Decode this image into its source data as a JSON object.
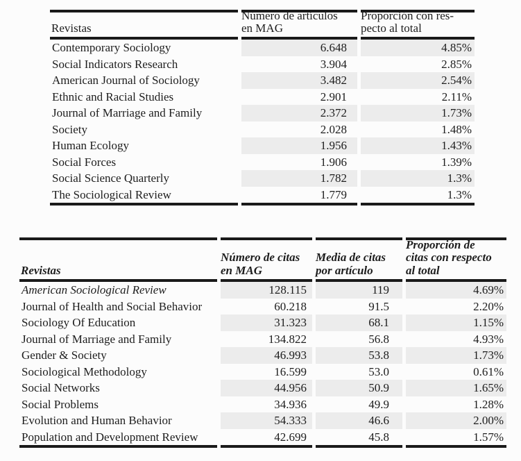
{
  "page": {
    "background_color": "#fcfcfc",
    "text_color": "#1d1d1d",
    "rule_color": "#1a1a1a",
    "row_shade_color": "#ececec"
  },
  "table1": {
    "description": "journals-by-number-of-articles",
    "headers": {
      "revistas": "Revistas",
      "articles": "Número de artículos\nen MAG",
      "proportion": "Proporción con res-\npecto al total"
    },
    "cell_names": [
      "journal-name-cell",
      "articles-count-cell",
      "proportion-cell"
    ],
    "first_row_italic": false,
    "rows": [
      [
        "Contemporary Sociology",
        "6.648",
        "4.85%"
      ],
      [
        "Social Indicators Research",
        "3.904",
        "2.85%"
      ],
      [
        "American Journal of Sociology",
        "3.482",
        "2.54%"
      ],
      [
        "Ethnic and Racial Studies",
        "2.901",
        "2.11%"
      ],
      [
        "Journal of Marriage and Family",
        "2.372",
        "1.73%"
      ],
      [
        "Society",
        "2.028",
        "1.48%"
      ],
      [
        "Human Ecology",
        "1.956",
        "1.43%"
      ],
      [
        "Social Forces",
        "1.906",
        "1.39%"
      ],
      [
        "Social Science Quarterly",
        "1.782",
        "1.3%"
      ],
      [
        "The Sociological Review",
        "1.779",
        "1.3%"
      ]
    ]
  },
  "table2": {
    "description": "journals-by-citations",
    "headers": {
      "revistas": "Revistas",
      "citations": "Número de citas\nen MAG",
      "mean_citations": "Media de citas\npor artículo",
      "proportion": "Proporción de\ncitas con respecto\nal total"
    },
    "cell_names": [
      "journal-name-cell",
      "citations-count-cell",
      "mean-citations-cell",
      "proportion-cell"
    ],
    "first_row_italic": true,
    "rows": [
      [
        "American Sociological Review",
        "128.115",
        "119",
        "4.69%"
      ],
      [
        "Journal of Health and Social Behavior",
        "60.218",
        "91.5",
        "2.20%"
      ],
      [
        "Sociology Of Education",
        "31.323",
        "68.1",
        "1.15%"
      ],
      [
        "Journal of Marriage and Family",
        "134.822",
        "56.8",
        "4.93%"
      ],
      [
        "Gender & Society",
        "46.993",
        "53.8",
        "1.73%"
      ],
      [
        "Sociological Methodology",
        "16.599",
        "53.0",
        "0.61%"
      ],
      [
        "Social Networks",
        "44.956",
        "50.9",
        "1.65%"
      ],
      [
        "Social Problems",
        "34.936",
        "49.9",
        "1.28%"
      ],
      [
        "Evolution and Human Behavior",
        "54.333",
        "46.6",
        "2.00%"
      ],
      [
        "Population and Development Review",
        "42.699",
        "45.8",
        "1.57%"
      ]
    ]
  }
}
